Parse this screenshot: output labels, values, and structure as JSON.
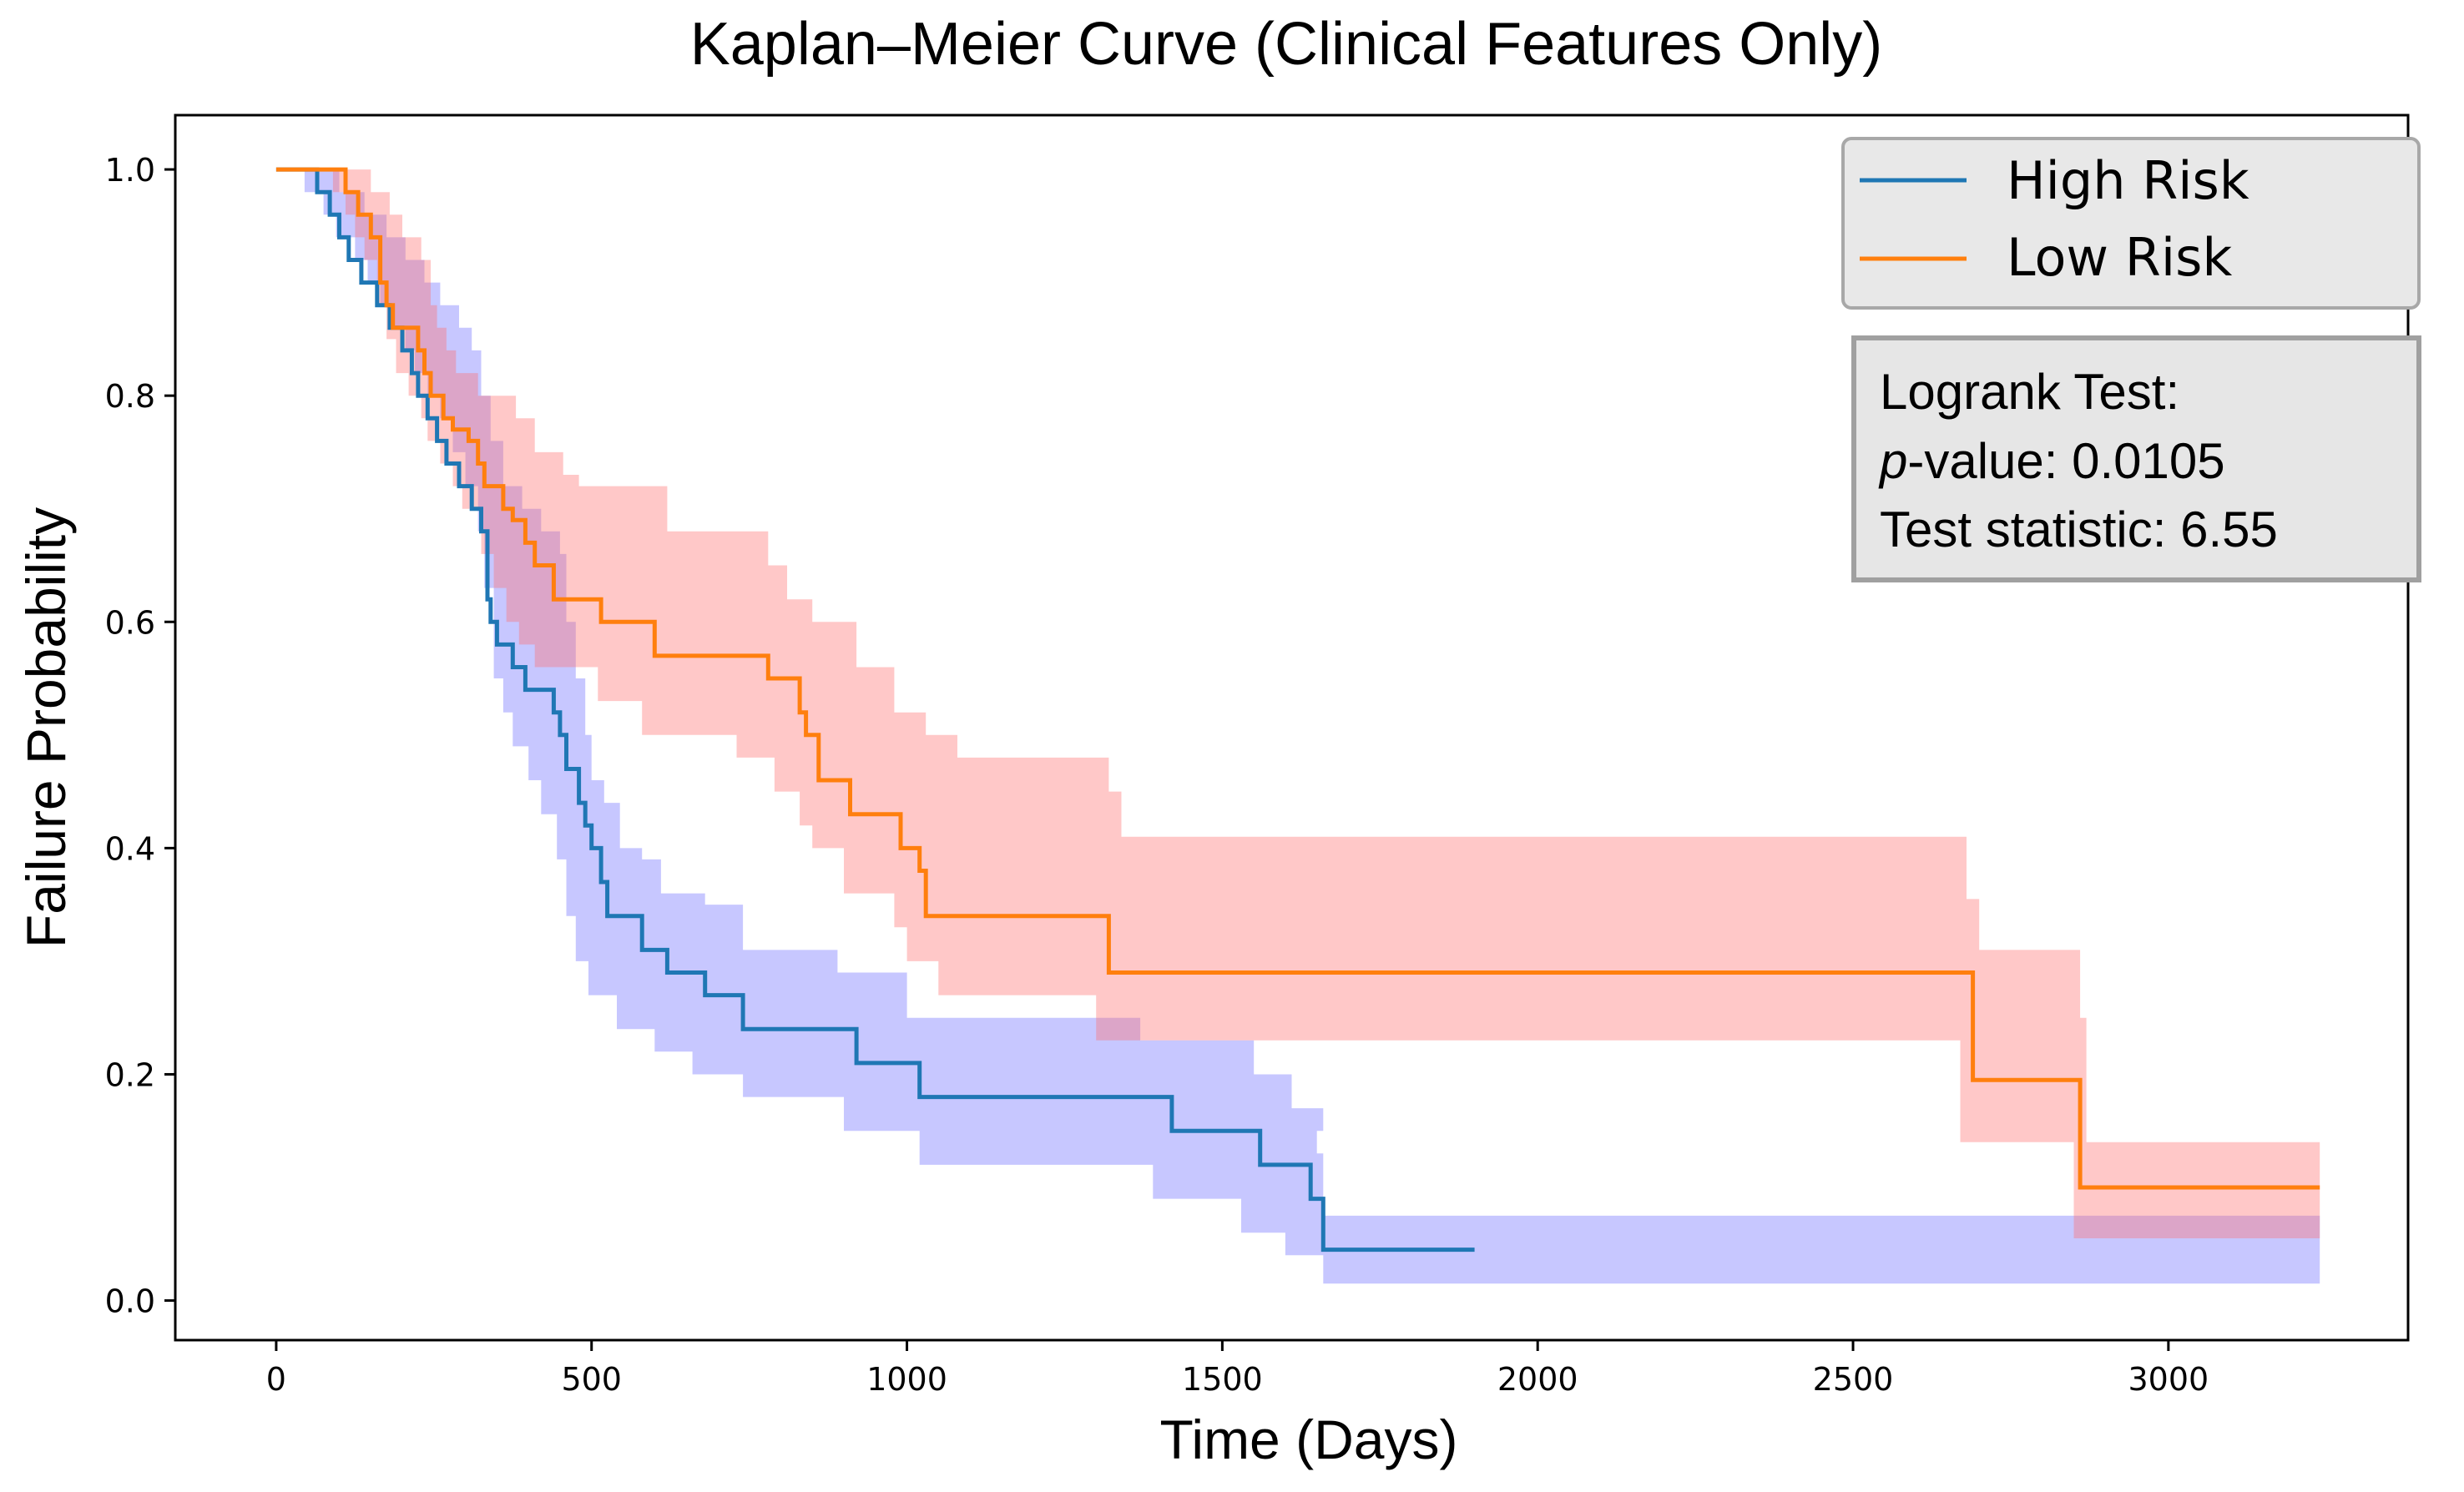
{
  "chart_data": {
    "type": "line",
    "title": "Kaplan–Meier Curve (Clinical Features Only)",
    "xlabel": "Time (Days)",
    "ylabel": "Failure Probability",
    "xlim": [
      -160,
      3380
    ],
    "ylim": [
      -0.035,
      1.048
    ],
    "x_ticks": [
      0,
      500,
      1000,
      1500,
      2000,
      2500,
      3000
    ],
    "x_tick_labels": [
      "0",
      "500",
      "1000",
      "1500",
      "2000",
      "2500",
      "3000"
    ],
    "y_ticks": [
      0.0,
      0.2,
      0.4,
      0.6,
      0.8,
      1.0
    ],
    "y_tick_labels": [
      "0.0",
      "0.2",
      "0.4",
      "0.6",
      "0.8",
      "1.0"
    ],
    "grid": false,
    "legend_position": "top-right",
    "legend": [
      "High Risk",
      "Low Risk"
    ],
    "series": [
      {
        "name": "High Risk",
        "line_color": "#1f77b4",
        "band_color": "#6b6bff",
        "steps": [
          [
            0,
            1.0
          ],
          [
            40,
            1.0
          ],
          [
            65,
            0.98
          ],
          [
            85,
            0.96
          ],
          [
            100,
            0.94
          ],
          [
            115,
            0.92
          ],
          [
            135,
            0.9
          ],
          [
            160,
            0.88
          ],
          [
            180,
            0.86
          ],
          [
            200,
            0.84
          ],
          [
            215,
            0.82
          ],
          [
            225,
            0.8
          ],
          [
            240,
            0.78
          ],
          [
            255,
            0.76
          ],
          [
            270,
            0.74
          ],
          [
            290,
            0.72
          ],
          [
            310,
            0.7
          ],
          [
            325,
            0.68
          ],
          [
            335,
            0.62
          ],
          [
            340,
            0.6
          ],
          [
            350,
            0.58
          ],
          [
            375,
            0.56
          ],
          [
            395,
            0.54
          ],
          [
            440,
            0.52
          ],
          [
            450,
            0.5
          ],
          [
            460,
            0.47
          ],
          [
            480,
            0.44
          ],
          [
            490,
            0.42
          ],
          [
            500,
            0.4
          ],
          [
            515,
            0.37
          ],
          [
            525,
            0.34
          ],
          [
            580,
            0.31
          ],
          [
            620,
            0.29
          ],
          [
            680,
            0.27
          ],
          [
            740,
            0.24
          ],
          [
            920,
            0.21
          ],
          [
            1020,
            0.18
          ],
          [
            1420,
            0.15
          ],
          [
            1560,
            0.12
          ],
          [
            1640,
            0.09
          ],
          [
            1660,
            0.045
          ],
          [
            1900,
            0.045
          ]
        ],
        "upper": [
          [
            0,
            1.0
          ],
          [
            60,
            1.0
          ],
          [
            100,
            0.98
          ],
          [
            140,
            0.96
          ],
          [
            175,
            0.94
          ],
          [
            205,
            0.92
          ],
          [
            235,
            0.9
          ],
          [
            260,
            0.88
          ],
          [
            290,
            0.86
          ],
          [
            310,
            0.84
          ],
          [
            325,
            0.8
          ],
          [
            340,
            0.76
          ],
          [
            360,
            0.72
          ],
          [
            390,
            0.7
          ],
          [
            420,
            0.68
          ],
          [
            450,
            0.66
          ],
          [
            460,
            0.6
          ],
          [
            475,
            0.55
          ],
          [
            490,
            0.5
          ],
          [
            500,
            0.46
          ],
          [
            520,
            0.44
          ],
          [
            545,
            0.4
          ],
          [
            580,
            0.39
          ],
          [
            610,
            0.36
          ],
          [
            680,
            0.35
          ],
          [
            740,
            0.31
          ],
          [
            890,
            0.29
          ],
          [
            1000,
            0.25
          ],
          [
            1370,
            0.23
          ],
          [
            1550,
            0.2
          ],
          [
            1610,
            0.17
          ],
          [
            1660,
            0.15
          ],
          [
            1650,
            0.13
          ],
          [
            1660,
            0.075
          ],
          [
            3240,
            0.075
          ]
        ],
        "lower": [
          [
            0,
            1.0
          ],
          [
            45,
            0.98
          ],
          [
            75,
            0.96
          ],
          [
            95,
            0.94
          ],
          [
            125,
            0.92
          ],
          [
            145,
            0.9
          ],
          [
            165,
            0.88
          ],
          [
            185,
            0.86
          ],
          [
            205,
            0.84
          ],
          [
            220,
            0.82
          ],
          [
            240,
            0.8
          ],
          [
            260,
            0.78
          ],
          [
            280,
            0.75
          ],
          [
            300,
            0.72
          ],
          [
            320,
            0.68
          ],
          [
            330,
            0.63
          ],
          [
            345,
            0.55
          ],
          [
            360,
            0.52
          ],
          [
            375,
            0.49
          ],
          [
            400,
            0.46
          ],
          [
            420,
            0.43
          ],
          [
            445,
            0.39
          ],
          [
            460,
            0.34
          ],
          [
            475,
            0.3
          ],
          [
            495,
            0.27
          ],
          [
            540,
            0.24
          ],
          [
            600,
            0.22
          ],
          [
            660,
            0.2
          ],
          [
            740,
            0.18
          ],
          [
            900,
            0.15
          ],
          [
            1020,
            0.12
          ],
          [
            1390,
            0.09
          ],
          [
            1530,
            0.06
          ],
          [
            1600,
            0.04
          ],
          [
            1660,
            0.015
          ],
          [
            3240,
            0.015
          ]
        ]
      },
      {
        "name": "Low Risk",
        "line_color": "#ff7f0e",
        "band_color": "#ff6e6e",
        "steps": [
          [
            0,
            1.0
          ],
          [
            75,
            1.0
          ],
          [
            110,
            0.98
          ],
          [
            130,
            0.96
          ],
          [
            150,
            0.94
          ],
          [
            165,
            0.9
          ],
          [
            175,
            0.88
          ],
          [
            185,
            0.86
          ],
          [
            225,
            0.84
          ],
          [
            235,
            0.82
          ],
          [
            245,
            0.8
          ],
          [
            265,
            0.78
          ],
          [
            280,
            0.77
          ],
          [
            305,
            0.76
          ],
          [
            320,
            0.74
          ],
          [
            330,
            0.72
          ],
          [
            360,
            0.7
          ],
          [
            375,
            0.69
          ],
          [
            395,
            0.67
          ],
          [
            410,
            0.65
          ],
          [
            440,
            0.62
          ],
          [
            515,
            0.6
          ],
          [
            600,
            0.57
          ],
          [
            780,
            0.55
          ],
          [
            830,
            0.52
          ],
          [
            840,
            0.5
          ],
          [
            860,
            0.46
          ],
          [
            910,
            0.43
          ],
          [
            990,
            0.4
          ],
          [
            1020,
            0.38
          ],
          [
            1030,
            0.34
          ],
          [
            1320,
            0.29
          ],
          [
            2690,
            0.195
          ],
          [
            2860,
            0.1
          ],
          [
            3240,
            0.1
          ]
        ],
        "upper": [
          [
            0,
            1.0
          ],
          [
            110,
            1.0
          ],
          [
            150,
            0.98
          ],
          [
            180,
            0.96
          ],
          [
            200,
            0.94
          ],
          [
            230,
            0.92
          ],
          [
            245,
            0.88
          ],
          [
            255,
            0.86
          ],
          [
            270,
            0.84
          ],
          [
            285,
            0.82
          ],
          [
            320,
            0.8
          ],
          [
            380,
            0.78
          ],
          [
            410,
            0.75
          ],
          [
            455,
            0.73
          ],
          [
            480,
            0.72
          ],
          [
            620,
            0.68
          ],
          [
            780,
            0.65
          ],
          [
            810,
            0.62
          ],
          [
            850,
            0.6
          ],
          [
            920,
            0.56
          ],
          [
            980,
            0.52
          ],
          [
            1030,
            0.5
          ],
          [
            1080,
            0.48
          ],
          [
            1320,
            0.45
          ],
          [
            1340,
            0.41
          ],
          [
            2680,
            0.355
          ],
          [
            2700,
            0.31
          ],
          [
            2860,
            0.25
          ],
          [
            2870,
            0.14
          ],
          [
            3240,
            0.14
          ]
        ],
        "lower": [
          [
            0,
            1.0
          ],
          [
            90,
            0.98
          ],
          [
            110,
            0.96
          ],
          [
            125,
            0.94
          ],
          [
            140,
            0.92
          ],
          [
            160,
            0.88
          ],
          [
            175,
            0.85
          ],
          [
            190,
            0.82
          ],
          [
            210,
            0.8
          ],
          [
            230,
            0.78
          ],
          [
            240,
            0.76
          ],
          [
            260,
            0.74
          ],
          [
            280,
            0.72
          ],
          [
            295,
            0.7
          ],
          [
            325,
            0.66
          ],
          [
            345,
            0.63
          ],
          [
            365,
            0.6
          ],
          [
            385,
            0.58
          ],
          [
            410,
            0.56
          ],
          [
            510,
            0.53
          ],
          [
            580,
            0.5
          ],
          [
            730,
            0.48
          ],
          [
            790,
            0.45
          ],
          [
            830,
            0.42
          ],
          [
            850,
            0.4
          ],
          [
            900,
            0.36
          ],
          [
            980,
            0.33
          ],
          [
            1000,
            0.3
          ],
          [
            1050,
            0.27
          ],
          [
            1300,
            0.23
          ],
          [
            2670,
            0.14
          ],
          [
            2850,
            0.055
          ],
          [
            3240,
            0.055
          ]
        ]
      }
    ],
    "annotation": {
      "heading": "Logrank Test:",
      "p_value_label": "p",
      "p_value_text": "-value: 0.0105",
      "statistic_text": "Test statistic: 6.55"
    }
  }
}
